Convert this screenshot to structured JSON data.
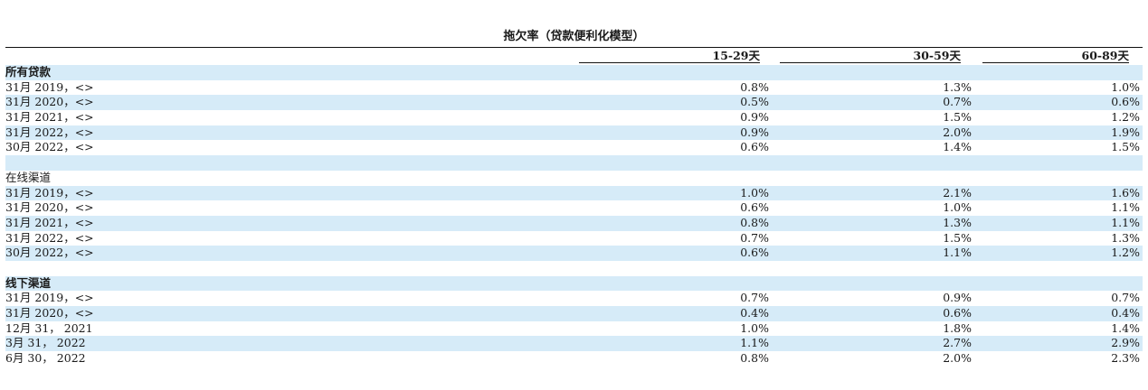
{
  "title": "拖欠率（贷款便利化模型）",
  "columns": [
    "15-29天",
    "30-59天",
    "60-89天"
  ],
  "rows": [
    {
      "label": "所有贷款",
      "kind": "section",
      "values": [
        "",
        "",
        ""
      ]
    },
    {
      "label": "31月 2019，<>",
      "kind": "data",
      "values": [
        "0.8%",
        "1.3%",
        "1.0%"
      ]
    },
    {
      "label": "31月 2020，<>",
      "kind": "data",
      "values": [
        "0.5%",
        "0.7%",
        "0.6%"
      ]
    },
    {
      "label": "31月 2021，<>",
      "kind": "data",
      "values": [
        "0.9%",
        "1.5%",
        "1.2%"
      ]
    },
    {
      "label": "31月 2022，<>",
      "kind": "data",
      "values": [
        "0.9%",
        "2.0%",
        "1.9%"
      ]
    },
    {
      "label": "30月 2022，<>",
      "kind": "data",
      "values": [
        "0.6%",
        "1.4%",
        "1.5%"
      ]
    },
    {
      "label": "",
      "kind": "spacer",
      "values": [
        "",
        "",
        ""
      ]
    },
    {
      "label": "在线渠道",
      "kind": "section-plain",
      "values": [
        "",
        "",
        ""
      ]
    },
    {
      "label": "31月 2019，<>",
      "kind": "data",
      "values": [
        "1.0%",
        "2.1%",
        "1.6%"
      ]
    },
    {
      "label": "31月 2020，<>",
      "kind": "data",
      "values": [
        "0.6%",
        "1.0%",
        "1.1%"
      ]
    },
    {
      "label": "31月 2021，<>",
      "kind": "data",
      "values": [
        "0.8%",
        "1.3%",
        "1.1%"
      ]
    },
    {
      "label": "31月 2022，<>",
      "kind": "data",
      "values": [
        "0.7%",
        "1.5%",
        "1.3%"
      ]
    },
    {
      "label": "30月 2022，<>",
      "kind": "data",
      "values": [
        "0.6%",
        "1.1%",
        "1.2%"
      ]
    },
    {
      "label": "",
      "kind": "spacer",
      "values": [
        "",
        "",
        ""
      ]
    },
    {
      "label": "线下渠道",
      "kind": "section",
      "values": [
        "",
        "",
        ""
      ]
    },
    {
      "label": "31月 2019，<>",
      "kind": "data",
      "values": [
        "0.7%",
        "0.9%",
        "0.7%"
      ]
    },
    {
      "label": "31月 2020，<>",
      "kind": "data",
      "values": [
        "0.4%",
        "0.6%",
        "0.4%"
      ]
    },
    {
      "label": "12月 31， 2021",
      "kind": "data",
      "values": [
        "1.0%",
        "1.8%",
        "1.4%"
      ]
    },
    {
      "label": "3月 31， 2022",
      "kind": "data",
      "values": [
        "1.1%",
        "2.7%",
        "2.9%"
      ]
    },
    {
      "label": "6月 30， 2022",
      "kind": "data",
      "values": [
        "0.8%",
        "2.0%",
        "2.3%"
      ]
    }
  ],
  "colors": {
    "band": "#d6ebf8",
    "text": "#1a1a1a",
    "rule": "#111111"
  }
}
